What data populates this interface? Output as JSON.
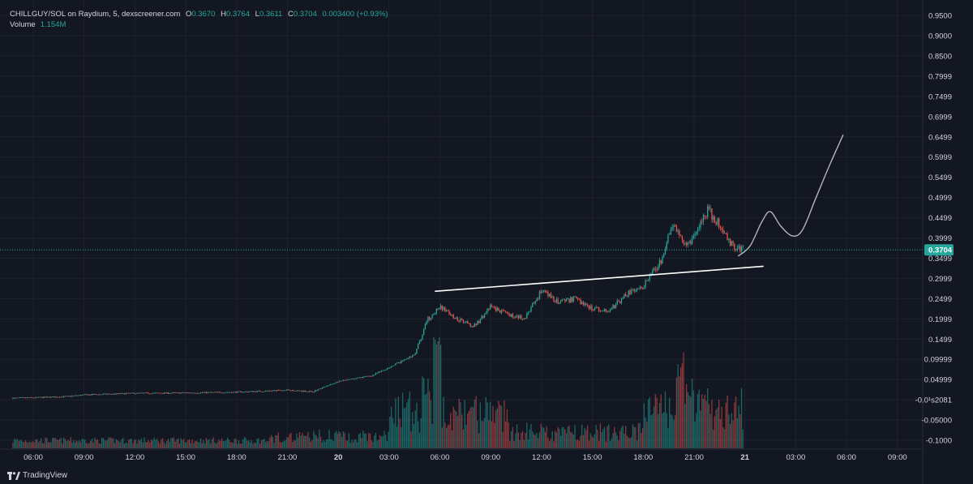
{
  "legend": {
    "symbol": "CHILLGUY/SOL on Raydium, 5, dexscreener.com",
    "o_label": "O",
    "o": "0.3670",
    "h_label": "H",
    "h": "0.3764",
    "l_label": "L",
    "l": "0.3611",
    "c_label": "C",
    "c": "0.3704",
    "change": "0.003400 (+0.93%)",
    "volume_label": "Volume",
    "volume_value": "1.154M"
  },
  "branding": {
    "name": "TradingView"
  },
  "colors": {
    "background": "#131722",
    "up": "#26a69a",
    "down": "#ef5350",
    "grid": "#1e222d",
    "text": "#d1d4dc",
    "line": "#ffffff",
    "projection": "#b2b5be"
  },
  "chart_data": {
    "type": "candlestick",
    "title": "CHILLGUY/SOL on Raydium, 5",
    "ylim": [
      -0.12,
      0.98
    ],
    "y_ticks": [
      "0.9500",
      "0.9000",
      "0.8500",
      "0.7999",
      "0.7499",
      "0.6999",
      "0.6499",
      "0.5999",
      "0.5499",
      "0.4999",
      "0.4499",
      "0.3999",
      "0.3499",
      "0.2999",
      "0.2499",
      "0.1999",
      "0.1499",
      "0.09999",
      "0.04999",
      "-0.0¹s2081",
      "-0.05000",
      "-0.1000"
    ],
    "y_tick_values": [
      0.95,
      0.9,
      0.85,
      0.7999,
      0.7499,
      0.6999,
      0.6499,
      0.5999,
      0.5499,
      0.4999,
      0.4499,
      0.3999,
      0.3499,
      0.2999,
      0.2499,
      0.1999,
      0.1499,
      0.09999,
      0.04999,
      0.0,
      -0.05,
      -0.1
    ],
    "x_ticks": [
      "06:00",
      "09:00",
      "12:00",
      "15:00",
      "18:00",
      "21:00",
      "20",
      "03:00",
      "06:00",
      "09:00",
      "12:00",
      "15:00",
      "18:00",
      "21:00",
      "21",
      "03:00",
      "06:00",
      "09:00"
    ],
    "x_tick_hours": [
      6,
      9,
      12,
      15,
      18,
      21,
      24,
      27,
      30,
      33,
      36,
      39,
      42,
      45,
      48,
      51,
      54,
      57
    ],
    "last_price": "0.3704",
    "last_price_value": 0.3704,
    "price_path": [
      {
        "h": 4.8,
        "p": 0.004
      },
      {
        "h": 6,
        "p": 0.005
      },
      {
        "h": 8,
        "p": 0.008
      },
      {
        "h": 9,
        "p": 0.012
      },
      {
        "h": 12,
        "p": 0.016
      },
      {
        "h": 15,
        "p": 0.017
      },
      {
        "h": 18,
        "p": 0.019
      },
      {
        "h": 20,
        "p": 0.022
      },
      {
        "h": 21,
        "p": 0.024
      },
      {
        "h": 22.5,
        "p": 0.02
      },
      {
        "h": 24,
        "p": 0.045
      },
      {
        "h": 26,
        "p": 0.06
      },
      {
        "h": 27,
        "p": 0.08
      },
      {
        "h": 28.5,
        "p": 0.11
      },
      {
        "h": 29.3,
        "p": 0.2
      },
      {
        "h": 30,
        "p": 0.23
      },
      {
        "h": 31,
        "p": 0.2
      },
      {
        "h": 32,
        "p": 0.18
      },
      {
        "h": 33,
        "p": 0.23
      },
      {
        "h": 34,
        "p": 0.21
      },
      {
        "h": 35,
        "p": 0.2
      },
      {
        "h": 36,
        "p": 0.27
      },
      {
        "h": 37,
        "p": 0.24
      },
      {
        "h": 38,
        "p": 0.25
      },
      {
        "h": 39,
        "p": 0.225
      },
      {
        "h": 40,
        "p": 0.22
      },
      {
        "h": 41,
        "p": 0.26
      },
      {
        "h": 42,
        "p": 0.28
      },
      {
        "h": 43,
        "p": 0.34
      },
      {
        "h": 43.8,
        "p": 0.44
      },
      {
        "h": 44.5,
        "p": 0.38
      },
      {
        "h": 45,
        "p": 0.4
      },
      {
        "h": 45.8,
        "p": 0.47
      },
      {
        "h": 46.5,
        "p": 0.43
      },
      {
        "h": 47.3,
        "p": 0.38
      },
      {
        "h": 47.9,
        "p": 0.37
      }
    ],
    "volume_spikes": [
      {
        "h": 29.8,
        "v": 1.0
      },
      {
        "h": 29.2,
        "v": 0.7
      },
      {
        "h": 28,
        "v": 0.55
      },
      {
        "h": 44.2,
        "v": 1.0
      },
      {
        "h": 44.8,
        "v": 0.65
      },
      {
        "h": 31,
        "v": 0.45
      },
      {
        "h": 43.2,
        "v": 0.4
      },
      {
        "h": 45.6,
        "v": 0.55
      }
    ],
    "trendline": {
      "from": {
        "h": 29.7,
        "p": 0.268
      },
      "to": {
        "h": 49.1,
        "p": 0.3299
      }
    },
    "projection": [
      {
        "h": 47.6,
        "p": 0.355
      },
      {
        "h": 48.3,
        "p": 0.38
      },
      {
        "h": 49.0,
        "p": 0.44
      },
      {
        "h": 49.5,
        "p": 0.465
      },
      {
        "h": 50.1,
        "p": 0.43
      },
      {
        "h": 50.8,
        "p": 0.405
      },
      {
        "h": 51.4,
        "p": 0.42
      },
      {
        "h": 52.2,
        "p": 0.5
      },
      {
        "h": 53.0,
        "p": 0.58
      },
      {
        "h": 53.8,
        "p": 0.655
      }
    ]
  }
}
